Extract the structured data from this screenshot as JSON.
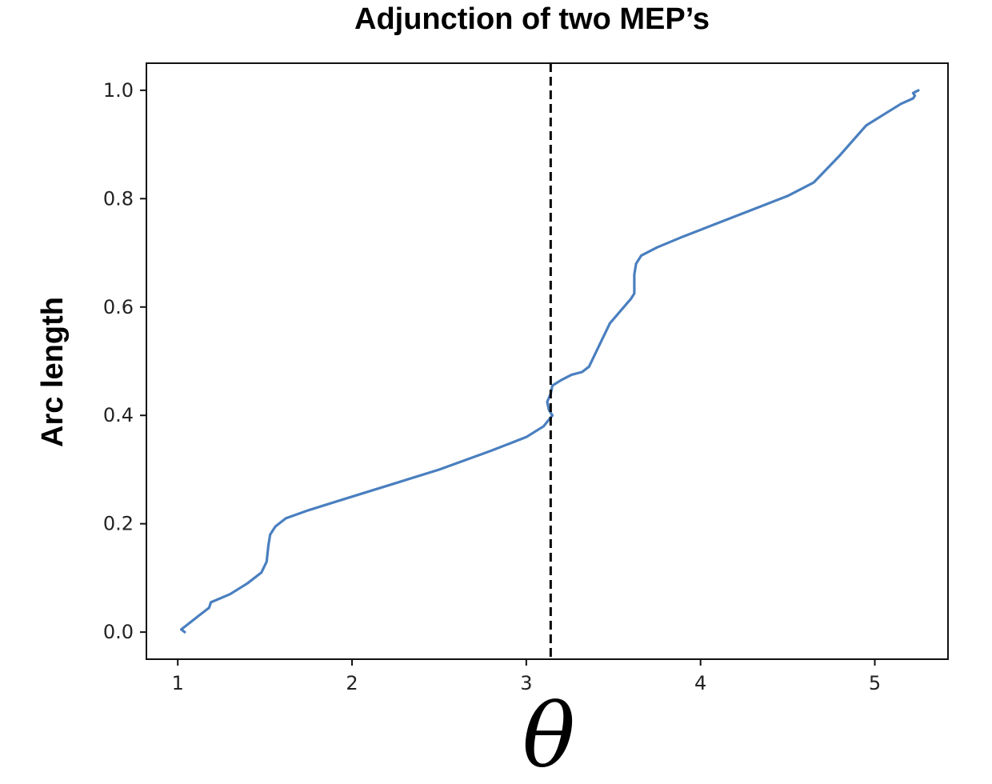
{
  "chart_data": {
    "type": "line",
    "title": "Adjunction of two MEP’s",
    "xlabel": "θ",
    "ylabel": "Arc length",
    "xlim": [
      0.82,
      5.42
    ],
    "ylim": [
      -0.05,
      1.05
    ],
    "x_ticks": [
      1,
      2,
      3,
      4,
      5
    ],
    "y_ticks": [
      0.0,
      0.2,
      0.4,
      0.6,
      0.8,
      1.0
    ],
    "x_tick_labels": [
      "1",
      "2",
      "3",
      "4",
      "5"
    ],
    "y_tick_labels": [
      "0.0",
      "0.2",
      "0.4",
      "0.6",
      "0.8",
      "1.0"
    ],
    "grid": false,
    "legend": "none",
    "series": [
      {
        "color": "#4a7fbf",
        "x": [
          1.04,
          1.02,
          1.06,
          1.12,
          1.18,
          1.19,
          1.3,
          1.4,
          1.48,
          1.51,
          1.52,
          1.53,
          1.56,
          1.62,
          1.75,
          1.95,
          2.2,
          2.5,
          2.8,
          3.0,
          3.1,
          3.15,
          3.13,
          3.12,
          3.14,
          3.15,
          3.2,
          3.26,
          3.32,
          3.36,
          3.42,
          3.48,
          3.56,
          3.6,
          3.62,
          3.62,
          3.63,
          3.66,
          3.75,
          3.9,
          4.1,
          4.3,
          4.5,
          4.65,
          4.8,
          4.95,
          5.05,
          5.15,
          5.22,
          5.23,
          5.22,
          5.25
        ],
        "y": [
          0.0,
          0.005,
          0.015,
          0.03,
          0.045,
          0.055,
          0.07,
          0.09,
          0.11,
          0.13,
          0.16,
          0.18,
          0.195,
          0.21,
          0.225,
          0.245,
          0.27,
          0.3,
          0.335,
          0.36,
          0.38,
          0.4,
          0.41,
          0.425,
          0.44,
          0.455,
          0.465,
          0.475,
          0.48,
          0.49,
          0.53,
          0.57,
          0.6,
          0.615,
          0.625,
          0.66,
          0.68,
          0.695,
          0.71,
          0.73,
          0.755,
          0.78,
          0.805,
          0.83,
          0.88,
          0.935,
          0.955,
          0.975,
          0.985,
          0.99,
          0.995,
          1.0
        ]
      }
    ],
    "annotations": [
      {
        "type": "vline",
        "x": 3.14,
        "style": "dashed",
        "color": "#000000"
      }
    ]
  }
}
